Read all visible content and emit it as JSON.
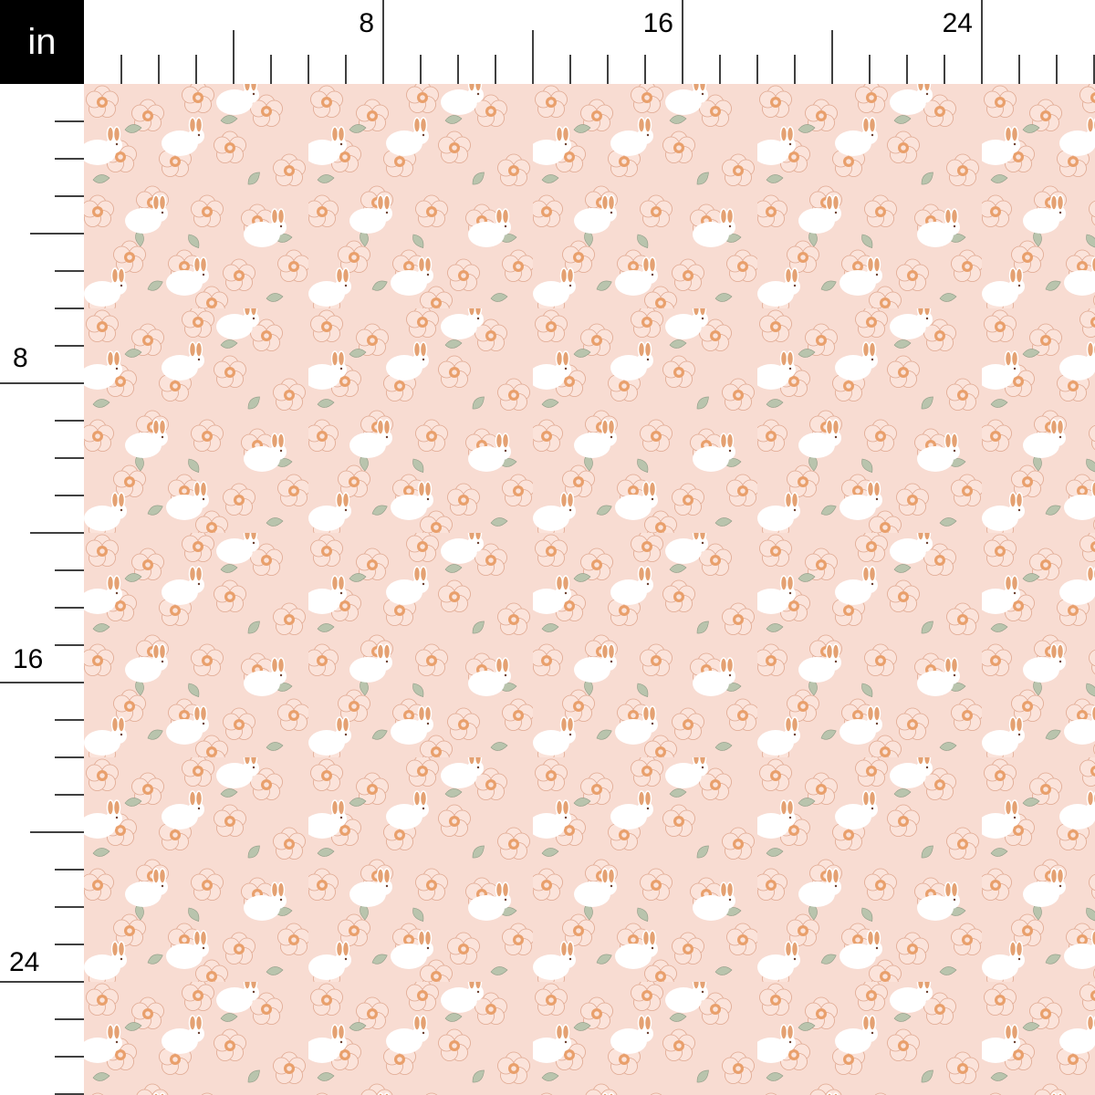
{
  "ruler": {
    "unit": "in",
    "top_labels": [
      "8",
      "16",
      "24"
    ],
    "left_labels": [
      "8",
      "16",
      "24"
    ]
  },
  "pattern": {
    "motif": "white bunnies among peach flowers and sage leaves",
    "colors": {
      "background": "#f8dcd2",
      "petal_outline": "#e0a890",
      "flower_center": "#e9a06c",
      "leaf": "#b9c4ad",
      "bunny": "#ffffff",
      "bunny_ear": "#e4a172"
    }
  }
}
